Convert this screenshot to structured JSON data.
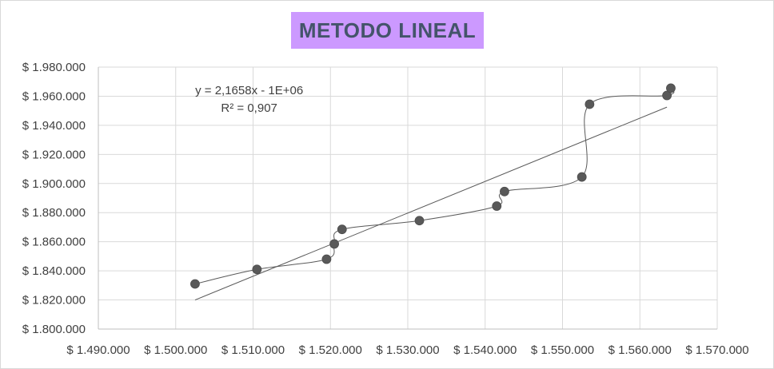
{
  "chart_data": {
    "type": "scatter",
    "title": "METODO LINEAL",
    "xlabel": "",
    "ylabel": "",
    "xlim": [
      1490000,
      1570000
    ],
    "ylim": [
      1800000,
      1980000
    ],
    "x_ticks": [
      "$ 1.490.000",
      "$ 1.500.000",
      "$ 1.510.000",
      "$ 1.520.000",
      "$ 1.530.000",
      "$ 1.540.000",
      "$ 1.550.000",
      "$ 1.560.000",
      "$ 1.570.000"
    ],
    "y_ticks": [
      "$ 1.800.000",
      "$ 1.820.000",
      "$ 1.840.000",
      "$ 1.860.000",
      "$ 1.880.000",
      "$ 1.900.000",
      "$ 1.920.000",
      "$ 1.940.000",
      "$ 1.960.000",
      "$ 1.980.000"
    ],
    "grid": true,
    "series": [
      {
        "points": [
          [
            1502500,
            1831000
          ],
          [
            1510500,
            1841000
          ],
          [
            1519500,
            1848000
          ],
          [
            1520500,
            1858500
          ],
          [
            1521500,
            1868500
          ],
          [
            1531500,
            1874500
          ],
          [
            1541500,
            1884500
          ],
          [
            1542500,
            1894500
          ],
          [
            1552500,
            1904500
          ],
          [
            1553500,
            1954500
          ],
          [
            1563500,
            1960500
          ],
          [
            1564000,
            1965500
          ]
        ],
        "marker_color": "#595959",
        "line": "smoothed",
        "line_color": "#595959"
      }
    ],
    "trendline": {
      "type": "linear",
      "x_range": [
        1502500,
        1563500
      ],
      "y_range": [
        1820000,
        1952500
      ],
      "equation": "y = 2,1658x - 1E+06",
      "r_squared": "R² = 0,907",
      "color": "#595959"
    },
    "title_background": "#cc99ff",
    "title_color": "#44546a"
  }
}
